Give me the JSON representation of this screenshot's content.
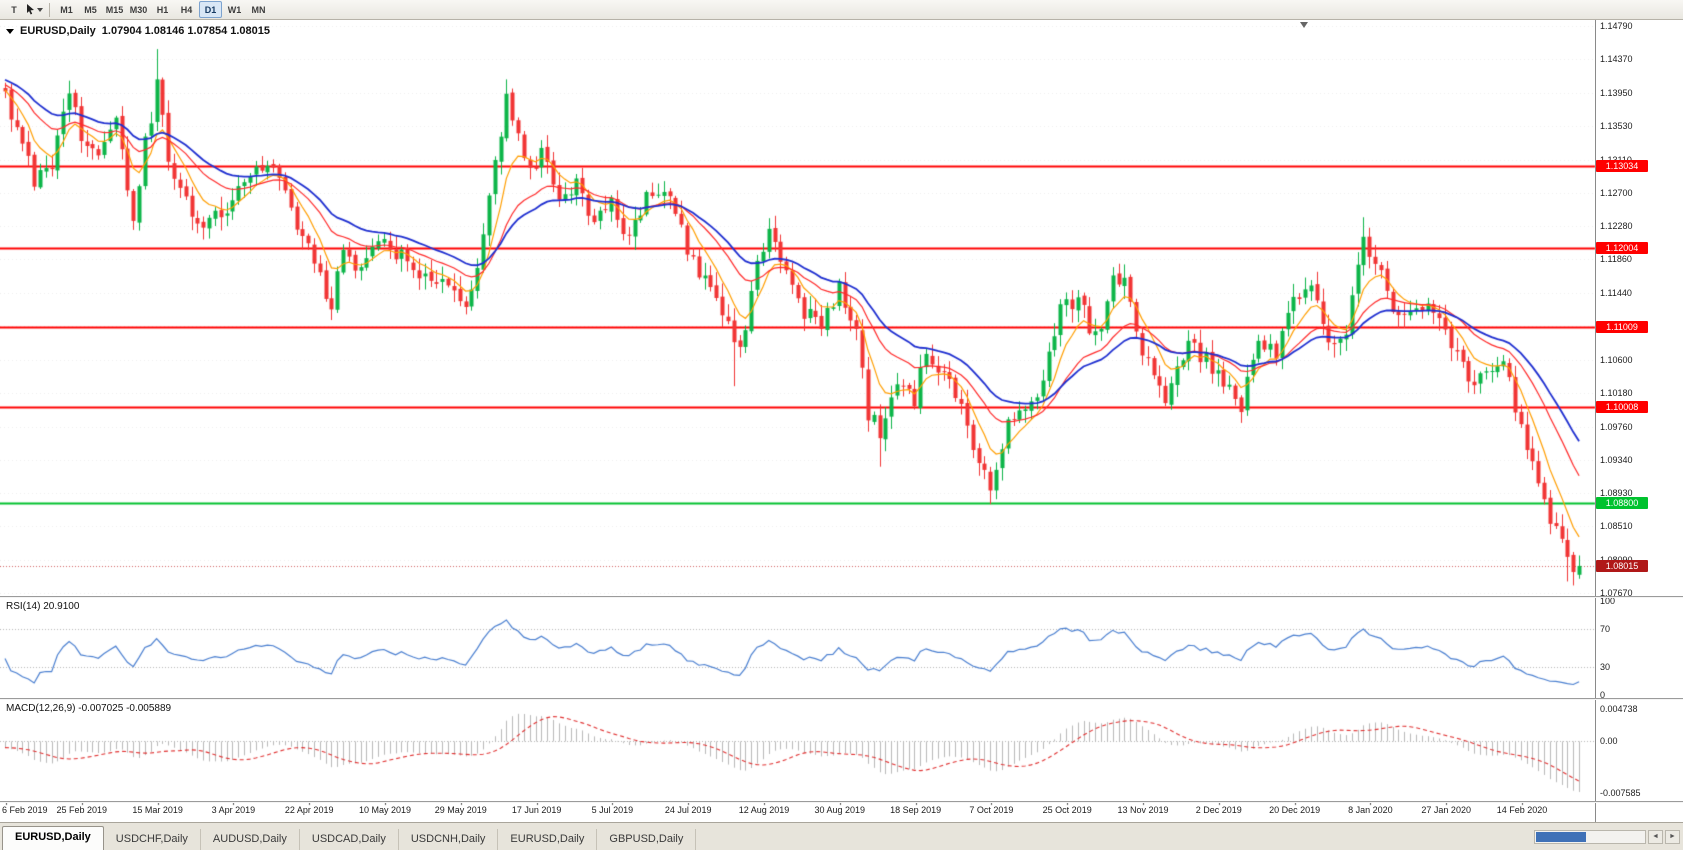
{
  "toolbar": {
    "tool_buttons": [
      {
        "name": "templates",
        "glyph": "T"
      },
      {
        "name": "cursor",
        "glyph": ""
      }
    ],
    "timeframes": [
      "M1",
      "M5",
      "M15",
      "M30",
      "H1",
      "H4",
      "D1",
      "W1",
      "MN"
    ],
    "active_timeframe": "D1"
  },
  "chart": {
    "title": "EURUSD,Daily",
    "ohlc_text": "1.07904 1.08146 1.07854 1.08015",
    "colors": {
      "candle_up": "#0db549",
      "candle_down": "#f13535",
      "ma_fast": "#ff9e00",
      "ma_mid": "#ff2a2a",
      "ma_slow": "#1f2fd0",
      "resistance_red": "#ff0000",
      "support_green": "#00c22e",
      "price_tag": "#b01818"
    },
    "price_axis_labels": [
      "1.14790",
      "1.14370",
      "1.13950",
      "1.13530",
      "1.13110",
      "1.12700",
      "1.12280",
      "1.11860",
      "1.11440",
      "1.11020",
      "1.10600",
      "1.10180",
      "1.09760",
      "1.09340",
      "1.08930",
      "1.08510",
      "1.08090",
      "1.07670"
    ],
    "horizontal_lines": [
      {
        "price": 1.13034,
        "label": "1.13034",
        "color": "red"
      },
      {
        "price": 1.12004,
        "label": "1.12004",
        "color": "red"
      },
      {
        "price": 1.11009,
        "label": "1.11009",
        "color": "red"
      },
      {
        "price": 1.10008,
        "label": "1.10008",
        "color": "red"
      },
      {
        "price": 1.088,
        "label": "1.08800",
        "color": "green"
      }
    ],
    "current_price": {
      "value": 1.08015,
      "label": "1.08015"
    },
    "last_bar": {
      "open": 1.07904,
      "high": 1.08146,
      "low": 1.07854,
      "close": 1.08015
    },
    "price_path": [
      [
        0,
        1.1392
      ],
      [
        3,
        1.133
      ],
      [
        5,
        1.1282
      ],
      [
        8,
        1.1305
      ],
      [
        11,
        1.1402
      ],
      [
        13,
        1.1345
      ],
      [
        16,
        1.1312
      ],
      [
        19,
        1.1358
      ],
      [
        22,
        1.124
      ],
      [
        24,
        1.133
      ],
      [
        26,
        1.1405
      ],
      [
        28,
        1.1312
      ],
      [
        31,
        1.1262
      ],
      [
        34,
        1.1228
      ],
      [
        38,
        1.1252
      ],
      [
        42,
        1.1288
      ],
      [
        46,
        1.1308
      ],
      [
        49,
        1.1245
      ],
      [
        53,
        1.1182
      ],
      [
        56,
        1.1125
      ],
      [
        58,
        1.12
      ],
      [
        61,
        1.1168
      ],
      [
        64,
        1.1212
      ],
      [
        68,
        1.1188
      ],
      [
        72,
        1.1162
      ],
      [
        76,
        1.1152
      ],
      [
        79,
        1.1122
      ],
      [
        81,
        1.1178
      ],
      [
        84,
        1.1302
      ],
      [
        86,
        1.1392
      ],
      [
        88,
        1.1342
      ],
      [
        90,
        1.1292
      ],
      [
        92,
        1.1322
      ],
      [
        95,
        1.1262
      ],
      [
        98,
        1.1282
      ],
      [
        101,
        1.1232
      ],
      [
        104,
        1.1262
      ],
      [
        107,
        1.1212
      ],
      [
        110,
        1.1268
      ],
      [
        113,
        1.1275
      ],
      [
        116,
        1.1222
      ],
      [
        119,
        1.1162
      ],
      [
        122,
        1.1142
      ],
      [
        125,
        1.1078
      ],
      [
        127,
        1.1092
      ],
      [
        129,
        1.1182
      ],
      [
        131,
        1.1222
      ],
      [
        134,
        1.1172
      ],
      [
        137,
        1.1122
      ],
      [
        140,
        1.1102
      ],
      [
        143,
        1.1152
      ],
      [
        146,
        1.1088
      ],
      [
        148,
        1.0992
      ],
      [
        150,
        1.0968
      ],
      [
        153,
        1.1032
      ],
      [
        156,
        1.1008
      ],
      [
        158,
        1.1075
      ],
      [
        161,
        1.1042
      ],
      [
        164,
        1.0998
      ],
      [
        167,
        1.0932
      ],
      [
        169,
        1.0898
      ],
      [
        172,
        1.0986
      ],
      [
        175,
        1.0996
      ],
      [
        178,
        1.1036
      ],
      [
        181,
        1.1128
      ],
      [
        184,
        1.1136
      ],
      [
        187,
        1.1086
      ],
      [
        190,
        1.1156
      ],
      [
        192,
        1.1166
      ],
      [
        195,
        1.1072
      ],
      [
        199,
        1.1016
      ],
      [
        203,
        1.1076
      ],
      [
        206,
        1.1062
      ],
      [
        209,
        1.1026
      ],
      [
        212,
        1.1002
      ],
      [
        215,
        1.1082
      ],
      [
        218,
        1.1066
      ],
      [
        221,
        1.1136
      ],
      [
        224,
        1.1156
      ],
      [
        227,
        1.1082
      ],
      [
        230,
        1.1102
      ],
      [
        233,
        1.1216
      ],
      [
        236,
        1.1166
      ],
      [
        239,
        1.1106
      ],
      [
        243,
        1.1132
      ],
      [
        247,
        1.1102
      ],
      [
        251,
        1.1032
      ],
      [
        255,
        1.1036
      ],
      [
        257,
        1.1066
      ],
      [
        259,
        1.1002
      ],
      [
        261,
        1.0948
      ],
      [
        263,
        1.0908
      ],
      [
        265,
        1.0858
      ],
      [
        267,
        1.0838
      ],
      [
        269,
        1.0795
      ],
      [
        270,
        1.0802
      ]
    ],
    "extreme_overrides": [
      {
        "idx": 26,
        "high": 1.145
      },
      {
        "idx": 56,
        "low": 1.111
      },
      {
        "idx": 86,
        "high": 1.1412
      },
      {
        "idx": 125,
        "low": 1.1027
      },
      {
        "idx": 150,
        "low": 1.0926
      },
      {
        "idx": 169,
        "low": 1.0879
      },
      {
        "idx": 212,
        "low": 1.0981
      },
      {
        "idx": 233,
        "high": 1.1239
      },
      {
        "idx": 268,
        "low": 1.0782
      }
    ]
  },
  "rsi_panel": {
    "label": "RSI(14) 20.9100",
    "period": 14,
    "value": 20.91,
    "axis_labels": [
      "100",
      "70",
      "30",
      "0"
    ],
    "dotted_levels": [
      70,
      30
    ],
    "line_color": "#4a7fd0"
  },
  "macd_panel": {
    "label": "MACD(12,26,9) -0.007025 -0.005889",
    "values": [
      -0.007025,
      -0.005889
    ],
    "axis_labels": [
      "0.004738",
      "0.00",
      "-0.007585"
    ],
    "histogram_color": "#b9b9b9",
    "signal_color": "#e03030"
  },
  "date_axis": {
    "labels": [
      "6 Feb 2019",
      "25 Feb 2019",
      "15 Mar 2019",
      "3 Apr 2019",
      "22 Apr 2019",
      "10 May 2019",
      "29 May 2019",
      "17 Jun 2019",
      "5 Jul 2019",
      "24 Jul 2019",
      "12 Aug 2019",
      "30 Aug 2019",
      "18 Sep 2019",
      "7 Oct 2019",
      "25 Oct 2019",
      "13 Nov 2019",
      "2 Dec 2019",
      "20 Dec 2019",
      "8 Jan 2020",
      "27 Jan 2020",
      "14 Feb 2020"
    ]
  },
  "tabs": {
    "items": [
      {
        "label": "EURUSD,Daily",
        "active": true
      },
      {
        "label": "USDCHF,Daily",
        "active": false
      },
      {
        "label": "AUDUSD,Daily",
        "active": false
      },
      {
        "label": "USDCAD,Daily",
        "active": false
      },
      {
        "label": "USDCNH,Daily",
        "active": false
      },
      {
        "label": "EURUSD,Daily",
        "active": false
      },
      {
        "label": "GBPUSD,Daily",
        "active": false
      }
    ],
    "scroll_left": "◄",
    "scroll_right": "►"
  }
}
